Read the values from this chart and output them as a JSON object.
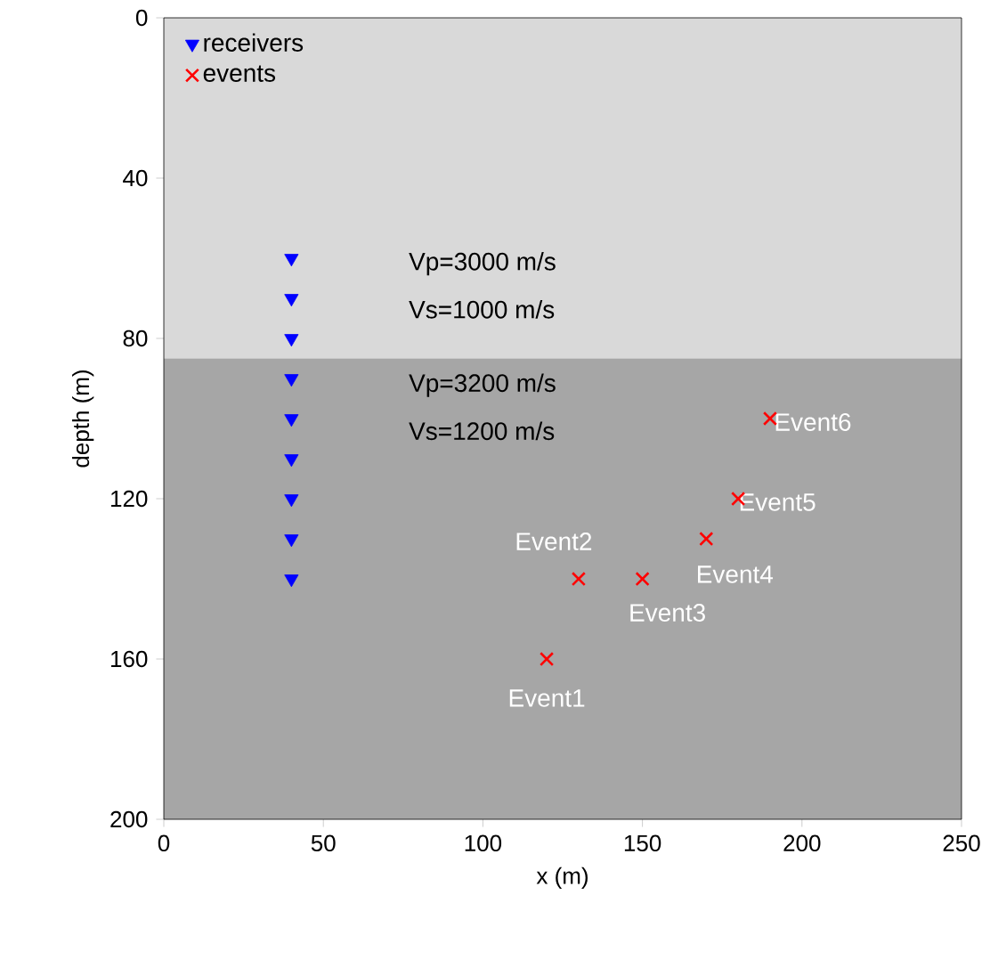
{
  "chart_data": {
    "type": "scatter",
    "xlabel": "x (m)",
    "ylabel": "depth (m)",
    "xlim": [
      0,
      250
    ],
    "ylim": [
      200,
      0
    ],
    "xticks": [
      0,
      50,
      100,
      150,
      200,
      250
    ],
    "yticks": [
      0,
      40,
      80,
      120,
      160,
      200
    ],
    "legend": "top left",
    "grid": false,
    "bands": [
      {
        "axis": "y",
        "from": 0,
        "to": 85,
        "color": "#d9d9d9"
      },
      {
        "axis": "y",
        "from": 85,
        "to": 200,
        "color": "#a6a6a6"
      }
    ],
    "series": [
      {
        "name": "receivers",
        "color": "#0000ff",
        "marker": "triangle",
        "x": [
          40,
          40,
          40,
          40,
          40,
          40,
          40,
          40,
          40
        ],
        "values": [
          60,
          70,
          80,
          90,
          100,
          110,
          120,
          130,
          140
        ]
      },
      {
        "name": "events",
        "color": "#ff0000",
        "marker": "cross",
        "x": [
          120,
          130,
          150,
          170,
          180,
          190
        ],
        "values": [
          160,
          140,
          140,
          130,
          120,
          100
        ]
      }
    ],
    "annotations": [
      "Vp=3000 m/s",
      "Vs=1000 m/s",
      "Vp=3200 m/s",
      "Vs=1200 m/s",
      {
        "text": "Event1",
        "x": 120,
        "y": 160
      },
      {
        "text": "Event2",
        "x": 130,
        "y": 140
      },
      {
        "text": "Event3",
        "x": 150,
        "y": 140
      },
      {
        "text": "Event4",
        "x": 170,
        "y": 130
      },
      {
        "text": "Event5",
        "x": 180,
        "y": 120
      },
      {
        "text": "Event6",
        "x": 190,
        "y": 100
      }
    ]
  }
}
